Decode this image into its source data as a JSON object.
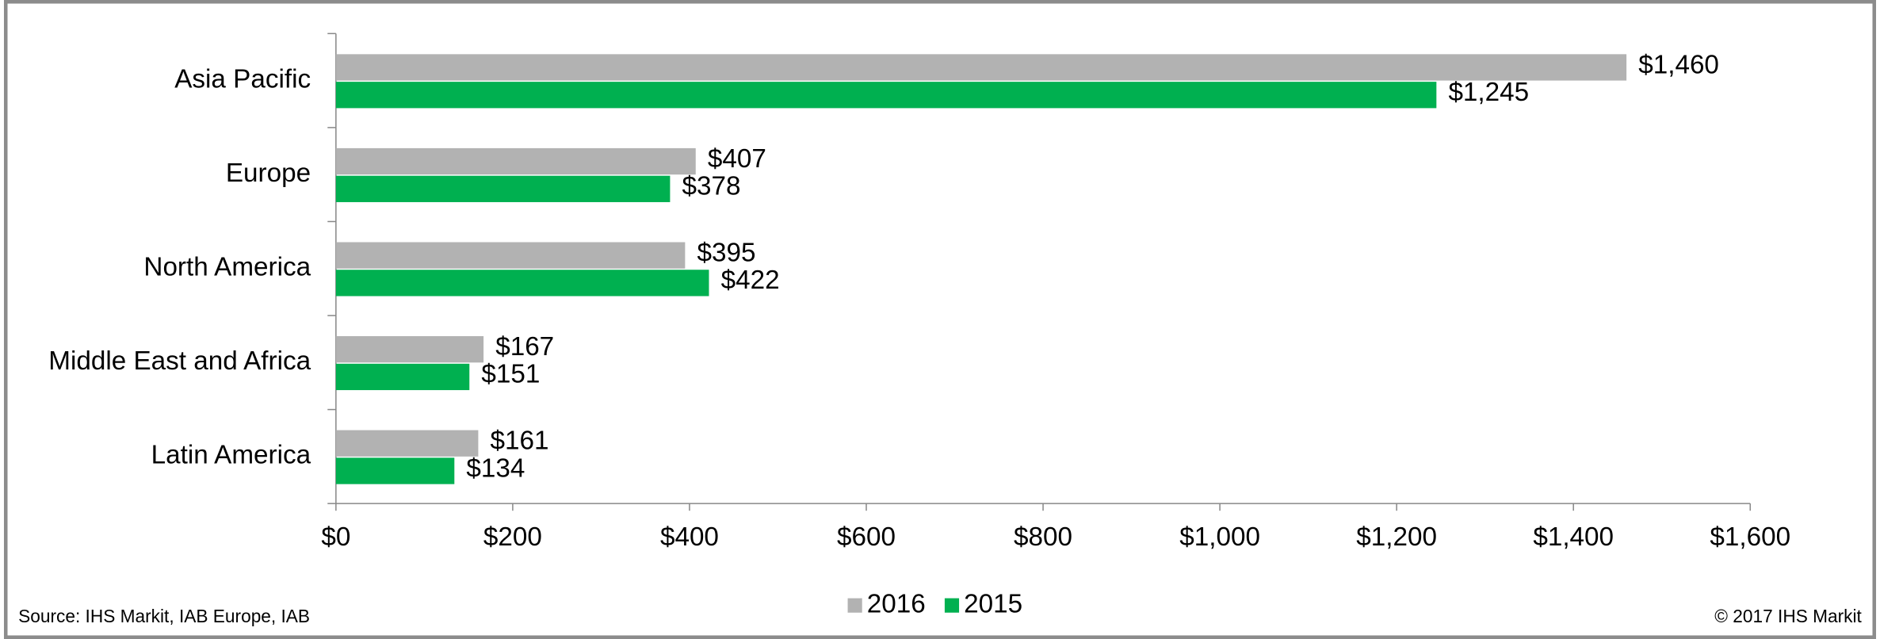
{
  "chart_data": {
    "type": "bar",
    "orientation": "horizontal",
    "categories": [
      "Asia Pacific",
      "Europe",
      "North America",
      "Middle East and Africa",
      "Latin America"
    ],
    "series": [
      {
        "name": "2016",
        "color": "#b2b2b2",
        "values": [
          1460,
          407,
          395,
          167,
          161
        ],
        "value_labels": [
          "$1,460",
          "$407",
          "$395",
          "$167",
          "$161"
        ]
      },
      {
        "name": "2015",
        "color": "#00b050",
        "values": [
          1245,
          378,
          422,
          151,
          134
        ],
        "value_labels": [
          "$1,245",
          "$378",
          "$422",
          "$151",
          "$134"
        ]
      }
    ],
    "xlim": [
      0,
      1600
    ],
    "xticks": [
      {
        "value": 0,
        "label": "$0"
      },
      {
        "value": 200,
        "label": "$200"
      },
      {
        "value": 400,
        "label": "$400"
      },
      {
        "value": 600,
        "label": "$600"
      },
      {
        "value": 800,
        "label": "$800"
      },
      {
        "value": 1000,
        "label": "$1,000"
      },
      {
        "value": 1200,
        "label": "$1,200"
      },
      {
        "value": 1400,
        "label": "$1,400"
      },
      {
        "value": 1600,
        "label": "$1,600"
      }
    ],
    "legend": "bottom",
    "source": "Source: IHS Markit, IAB Europe, IAB",
    "copyright": "© 2017 IHS Markit"
  }
}
